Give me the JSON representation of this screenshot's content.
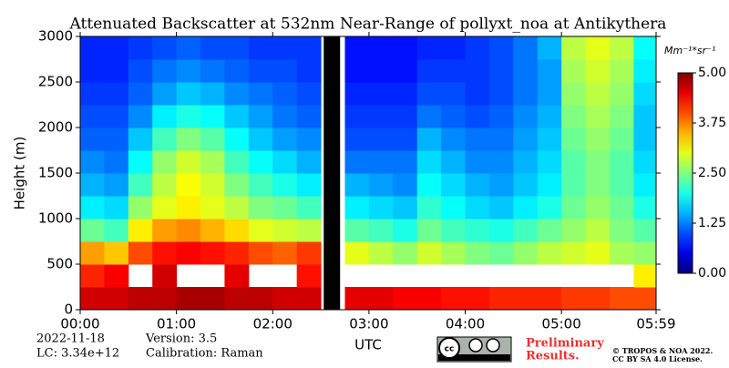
{
  "chart_data": {
    "type": "heatmap",
    "title": "Attenuated Backscatter at 532nm Near-Range of pollyxt_noa at Antikythera",
    "ylabel": "Height (m)",
    "xlabel": "UTC",
    "colorbar_label": "Mm⁻¹*sr⁻¹",
    "colormap": "jet",
    "xlim": [
      0,
      5.983
    ],
    "ylim": [
      0,
      3000
    ],
    "zlim": [
      0,
      5
    ],
    "xticks": [
      {
        "value": 0,
        "label": "00:00"
      },
      {
        "value": 1,
        "label": "01:00"
      },
      {
        "value": 2,
        "label": "02:00"
      },
      {
        "value": 3,
        "label": "03:00"
      },
      {
        "value": 4,
        "label": "04:00"
      },
      {
        "value": 5,
        "label": "05:00"
      },
      {
        "value": 5.983,
        "label": "05:59"
      }
    ],
    "yticks": [
      0,
      500,
      1000,
      1500,
      2000,
      2500,
      3000
    ],
    "zticks": [
      {
        "value": 0,
        "label": "0.00"
      },
      {
        "value": 1.25,
        "label": "1.25"
      },
      {
        "value": 2.5,
        "label": "2.50"
      },
      {
        "value": 3.75,
        "label": "3.75"
      },
      {
        "value": 5,
        "label": "5.00"
      }
    ],
    "xbins": [
      0,
      0.25,
      0.5,
      0.75,
      1,
      1.25,
      1.5,
      1.75,
      2,
      2.25,
      2.5,
      2.75,
      3,
      3.25,
      3.5,
      3.75,
      4,
      4.25,
      4.5,
      4.75,
      5,
      5.25,
      5.5,
      5.75,
      5.983
    ],
    "ybins": [
      0,
      250,
      500,
      750,
      1000,
      1250,
      1500,
      1750,
      2000,
      2250,
      2500,
      2750,
      3000
    ],
    "gaps": [
      {
        "start": 2.53,
        "end": 2.7
      }
    ],
    "gap_color": "#000000",
    "z": [
      [
        4.6,
        4.6,
        4.7,
        4.7,
        4.8,
        4.8,
        4.7,
        4.7,
        4.6,
        4.6,
        null,
        4.5,
        4.5,
        4.4,
        4.4,
        4.3,
        4.3,
        4.2,
        4.2,
        4.2,
        4.1,
        4.1,
        4.0,
        4.0
      ],
      [
        4.2,
        4.4,
        null,
        4.6,
        null,
        null,
        4.5,
        null,
        null,
        4.3,
        null,
        null,
        null,
        null,
        null,
        null,
        null,
        null,
        null,
        null,
        null,
        null,
        null,
        3.2
      ],
      [
        3.6,
        3.4,
        4.0,
        4.3,
        4.4,
        4.3,
        4.2,
        4.0,
        3.9,
        4.1,
        null,
        3.0,
        2.8,
        2.6,
        2.9,
        2.7,
        2.5,
        2.4,
        2.6,
        2.8,
        2.9,
        3.0,
        2.7,
        2.6
      ],
      [
        2.4,
        2.2,
        3.2,
        3.6,
        3.7,
        3.5,
        3.3,
        3.0,
        2.9,
        2.8,
        null,
        2.3,
        2.2,
        2.0,
        2.4,
        2.2,
        2.1,
        2.0,
        2.2,
        2.4,
        2.6,
        2.8,
        2.5,
        2.3
      ],
      [
        1.8,
        1.7,
        2.6,
        3.0,
        3.2,
        3.0,
        2.8,
        2.5,
        2.4,
        2.2,
        null,
        1.8,
        1.7,
        1.6,
        2.1,
        1.9,
        1.7,
        1.6,
        1.8,
        2.0,
        2.4,
        2.6,
        2.4,
        2.0
      ],
      [
        1.5,
        1.4,
        2.2,
        2.8,
        3.1,
        2.9,
        2.5,
        2.2,
        2.0,
        1.8,
        null,
        1.5,
        1.4,
        1.3,
        1.9,
        1.7,
        1.5,
        1.4,
        1.6,
        1.8,
        2.3,
        2.5,
        2.3,
        1.8
      ],
      [
        1.3,
        1.2,
        1.9,
        2.6,
        2.9,
        2.7,
        2.2,
        1.9,
        1.7,
        1.5,
        null,
        1.2,
        1.2,
        1.2,
        1.7,
        1.5,
        1.3,
        1.3,
        1.5,
        1.7,
        2.3,
        2.5,
        2.3,
        1.7
      ],
      [
        1.1,
        1.1,
        1.6,
        2.2,
        2.5,
        2.3,
        1.9,
        1.6,
        1.4,
        1.3,
        null,
        1.0,
        1.0,
        1.0,
        1.5,
        1.3,
        1.2,
        1.2,
        1.4,
        1.6,
        2.4,
        2.6,
        2.4,
        1.6
      ],
      [
        1.0,
        1.0,
        1.3,
        1.8,
        2.0,
        1.9,
        1.6,
        1.4,
        1.2,
        1.1,
        null,
        0.9,
        0.9,
        0.9,
        1.2,
        1.1,
        1.0,
        1.1,
        1.3,
        1.5,
        2.5,
        2.7,
        2.5,
        1.6
      ],
      [
        0.9,
        0.9,
        1.1,
        1.4,
        1.6,
        1.5,
        1.3,
        1.2,
        1.1,
        1.0,
        null,
        0.8,
        0.8,
        0.8,
        1.0,
        1.0,
        0.9,
        1.0,
        1.2,
        1.4,
        2.6,
        2.8,
        2.6,
        1.7
      ],
      [
        0.8,
        0.8,
        1.0,
        1.2,
        1.3,
        1.2,
        1.1,
        1.0,
        1.0,
        0.9,
        null,
        0.7,
        0.7,
        0.7,
        0.9,
        0.9,
        0.9,
        1.0,
        1.2,
        1.4,
        2.7,
        2.9,
        2.7,
        1.8
      ],
      [
        0.8,
        0.8,
        0.9,
        1.0,
        1.1,
        1.0,
        1.0,
        0.9,
        0.9,
        0.9,
        null,
        0.7,
        0.7,
        0.7,
        0.8,
        0.8,
        0.9,
        1.0,
        1.2,
        1.5,
        2.8,
        3.0,
        2.8,
        1.9
      ]
    ]
  },
  "footer": {
    "date": "2022-11-18",
    "lc": "LC: 3.34e+12",
    "version": "Version: 3.5",
    "calibration": "Calibration: Raman",
    "preliminary": "Preliminary",
    "results": "Results.",
    "copyright": "© TROPOS & NOA 2022.",
    "license": "CC BY SA 4.0 License."
  }
}
